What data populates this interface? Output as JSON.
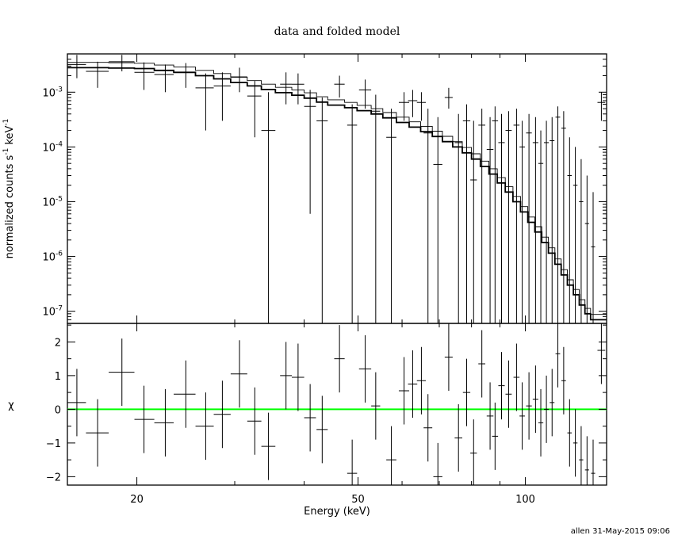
{
  "chart_data": {
    "type": "scatter",
    "title": "data and folded model",
    "footer": "allen 31-May-2015 09:06",
    "xlabel": "Energy (keV)",
    "xscale": "log",
    "xlim": [
      15,
      140
    ],
    "xticks": [
      {
        "v": 20,
        "label": "20"
      },
      {
        "v": 50,
        "label": "50"
      },
      {
        "v": 100,
        "label": "100"
      }
    ],
    "colors": {
      "axes": "#000000",
      "data": "#000000",
      "model": "#000000",
      "zero_line": "#00ff00"
    },
    "top_panel": {
      "ylabel": [
        "normalized counts s",
        "-1",
        " keV",
        "-1"
      ],
      "yscale": "log",
      "ylim": [
        6e-08,
        0.005
      ],
      "yticks": [
        {
          "v": 0.001,
          "base": "10",
          "exp": "-3"
        },
        {
          "v": 0.0001,
          "base": "10",
          "exp": "-4"
        },
        {
          "v": 1e-05,
          "base": "10",
          "exp": "-5"
        },
        {
          "v": 1e-06,
          "base": "10",
          "exp": "-6"
        },
        {
          "v": 1e-07,
          "base": "10",
          "exp": "-7"
        }
      ],
      "data": [
        {
          "x": 15.6,
          "xlo": 15.0,
          "xhi": 16.2,
          "y": 0.0032,
          "ylo": 0.0018,
          "yhi": 0.0048
        },
        {
          "x": 17.0,
          "xlo": 16.2,
          "xhi": 17.8,
          "y": 0.0024,
          "ylo": 0.0012,
          "yhi": 0.0036
        },
        {
          "x": 18.8,
          "xlo": 17.8,
          "xhi": 19.8,
          "y": 0.0036,
          "ylo": 0.0024,
          "yhi": 0.0048
        },
        {
          "x": 20.6,
          "xlo": 19.8,
          "xhi": 21.5,
          "y": 0.0023,
          "ylo": 0.0011,
          "yhi": 0.0035
        },
        {
          "x": 22.5,
          "xlo": 21.5,
          "xhi": 23.3,
          "y": 0.0021,
          "ylo": 0.001,
          "yhi": 0.0032
        },
        {
          "x": 24.5,
          "xlo": 23.3,
          "xhi": 25.5,
          "y": 0.0023,
          "ylo": 0.0012,
          "yhi": 0.0034
        },
        {
          "x": 26.6,
          "xlo": 25.5,
          "xhi": 27.5,
          "y": 0.0012,
          "ylo": 0.0002,
          "yhi": 0.0022
        },
        {
          "x": 28.5,
          "xlo": 27.5,
          "xhi": 29.5,
          "y": 0.0013,
          "ylo": 0.0003,
          "yhi": 0.0023
        },
        {
          "x": 30.6,
          "xlo": 29.5,
          "xhi": 31.6,
          "y": 0.0019,
          "ylo": 0.001,
          "yhi": 0.0028
        },
        {
          "x": 32.6,
          "xlo": 31.6,
          "xhi": 33.5,
          "y": 0.00085,
          "ylo": 0.00015,
          "yhi": 0.0016
        },
        {
          "x": 34.5,
          "xlo": 33.5,
          "xhi": 35.5,
          "y": 0.0002,
          "ylo": 6e-08,
          "yhi": 0.001
        },
        {
          "x": 37.1,
          "xlo": 36.2,
          "xhi": 38.0,
          "y": 0.0014,
          "ylo": 0.0006,
          "yhi": 0.0023
        },
        {
          "x": 39.0,
          "xlo": 38.0,
          "xhi": 40.0,
          "y": 0.0014,
          "ylo": 0.0006,
          "yhi": 0.0022
        },
        {
          "x": 41.0,
          "xlo": 40.0,
          "xhi": 42.0,
          "y": 0.00055,
          "ylo": 6e-06,
          "yhi": 0.0011
        },
        {
          "x": 43.1,
          "xlo": 42.1,
          "xhi": 44.1,
          "y": 0.0003,
          "ylo": 6e-08,
          "yhi": 0.0008
        },
        {
          "x": 46.3,
          "xlo": 45.3,
          "xhi": 47.3,
          "y": 0.0014,
          "ylo": 0.0008,
          "yhi": 0.002
        },
        {
          "x": 48.8,
          "xlo": 47.8,
          "xhi": 49.8,
          "y": 0.00025,
          "ylo": 6e-08,
          "yhi": 0.0006
        },
        {
          "x": 51.5,
          "xlo": 50.2,
          "xhi": 52.8,
          "y": 0.0011,
          "ylo": 0.0005,
          "yhi": 0.0017
        },
        {
          "x": 53.8,
          "xlo": 52.8,
          "xhi": 54.8,
          "y": 0.00045,
          "ylo": 6e-08,
          "yhi": 0.0009
        },
        {
          "x": 57.4,
          "xlo": 56.2,
          "xhi": 58.6,
          "y": 0.00015,
          "ylo": 6e-08,
          "yhi": 0.0005
        },
        {
          "x": 60.5,
          "xlo": 59.2,
          "xhi": 61.8,
          "y": 0.00065,
          "ylo": 0.0003,
          "yhi": 0.001
        },
        {
          "x": 62.7,
          "xlo": 61.5,
          "xhi": 63.9,
          "y": 0.0007,
          "ylo": 0.00035,
          "yhi": 0.0011
        },
        {
          "x": 65.0,
          "xlo": 63.8,
          "xhi": 66.2,
          "y": 0.00065,
          "ylo": 0.0003,
          "yhi": 0.001
        },
        {
          "x": 66.8,
          "xlo": 65.6,
          "xhi": 68.0,
          "y": 0.00018,
          "ylo": 6e-08,
          "yhi": 0.0005
        },
        {
          "x": 69.6,
          "xlo": 68.3,
          "xhi": 70.9,
          "y": 4.8e-05,
          "ylo": 6e-08,
          "yhi": 0.00035
        },
        {
          "x": 72.8,
          "xlo": 71.6,
          "xhi": 74.0,
          "y": 0.0008,
          "ylo": 0.0005,
          "yhi": 0.0012
        },
        {
          "x": 75.8,
          "xlo": 74.6,
          "xhi": 77.0,
          "y": 0.00012,
          "ylo": 6e-08,
          "yhi": 0.0004
        },
        {
          "x": 78.4,
          "xlo": 77.2,
          "xhi": 79.6,
          "y": 0.0003,
          "ylo": 6e-08,
          "yhi": 0.0006
        },
        {
          "x": 80.7,
          "xlo": 79.6,
          "xhi": 81.8,
          "y": 2.5e-05,
          "ylo": 6e-08,
          "yhi": 0.0003
        },
        {
          "x": 83.5,
          "xlo": 82.3,
          "xhi": 84.7,
          "y": 0.00025,
          "ylo": 6e-08,
          "yhi": 0.0005
        },
        {
          "x": 86.4,
          "xlo": 85.2,
          "xhi": 87.6,
          "y": 9e-05,
          "ylo": 6e-08,
          "yhi": 0.00035
        },
        {
          "x": 88.2,
          "xlo": 87.1,
          "xhi": 89.3,
          "y": 0.0003,
          "ylo": 6e-08,
          "yhi": 0.00055
        },
        {
          "x": 90.6,
          "xlo": 89.4,
          "xhi": 91.8,
          "y": 0.00012,
          "ylo": 6e-08,
          "yhi": 0.0004
        },
        {
          "x": 93.3,
          "xlo": 92.1,
          "xhi": 94.5,
          "y": 0.0002,
          "ylo": 6e-08,
          "yhi": 0.00045
        },
        {
          "x": 96.4,
          "xlo": 95.2,
          "xhi": 97.6,
          "y": 0.00025,
          "ylo": 6e-08,
          "yhi": 0.0005
        },
        {
          "x": 98.7,
          "xlo": 97.6,
          "xhi": 99.8,
          "y": 0.0001,
          "ylo": 6e-08,
          "yhi": 0.0003
        },
        {
          "x": 101.5,
          "xlo": 100.3,
          "xhi": 102.7,
          "y": 0.00018,
          "ylo": 6e-08,
          "yhi": 0.0004
        },
        {
          "x": 104.3,
          "xlo": 103.1,
          "xhi": 105.5,
          "y": 0.00012,
          "ylo": 6e-08,
          "yhi": 0.00035
        },
        {
          "x": 106.6,
          "xlo": 105.5,
          "xhi": 107.7,
          "y": 5e-05,
          "ylo": 6e-08,
          "yhi": 0.0002
        },
        {
          "x": 109.1,
          "xlo": 108.0,
          "xhi": 110.2,
          "y": 0.00012,
          "ylo": 6e-08,
          "yhi": 0.0003
        },
        {
          "x": 111.7,
          "xlo": 110.6,
          "xhi": 112.8,
          "y": 0.00013,
          "ylo": 6e-08,
          "yhi": 0.00035
        },
        {
          "x": 114.4,
          "xlo": 113.3,
          "xhi": 115.5,
          "y": 0.00035,
          "ylo": 6e-08,
          "yhi": 0.00055
        },
        {
          "x": 117.2,
          "xlo": 116.1,
          "xhi": 118.3,
          "y": 0.00022,
          "ylo": 6e-08,
          "yhi": 0.00045
        },
        {
          "x": 120.1,
          "xlo": 119.0,
          "xhi": 121.2,
          "y": 3e-05,
          "ylo": 6e-08,
          "yhi": 0.00015
        },
        {
          "x": 123.0,
          "xlo": 121.9,
          "xhi": 124.1,
          "y": 2e-05,
          "ylo": 6e-08,
          "yhi": 0.0001
        },
        {
          "x": 126.0,
          "xlo": 124.9,
          "xhi": 127.1,
          "y": 1e-05,
          "ylo": 6e-08,
          "yhi": 6e-05
        },
        {
          "x": 129.1,
          "xlo": 128.0,
          "xhi": 130.2,
          "y": 4e-06,
          "ylo": 6e-08,
          "yhi": 3e-05
        },
        {
          "x": 132.4,
          "xlo": 131.3,
          "xhi": 133.5,
          "y": 1.5e-06,
          "ylo": 6e-08,
          "yhi": 1.5e-05
        },
        {
          "x": 137.0,
          "xlo": 134.8,
          "xhi": 139.2,
          "y": 0.00065,
          "ylo": 0.0003,
          "yhi": 0.001
        }
      ],
      "model": [
        [
          15.0,
          0.0028
        ],
        [
          16.2,
          0.0028
        ],
        [
          17.8,
          0.00275
        ],
        [
          19.8,
          0.0027
        ],
        [
          21.5,
          0.0025
        ],
        [
          23.3,
          0.0023
        ],
        [
          25.5,
          0.002
        ],
        [
          27.5,
          0.00175
        ],
        [
          29.5,
          0.0015
        ],
        [
          31.6,
          0.0013
        ],
        [
          33.5,
          0.00112
        ],
        [
          35.5,
          0.00098
        ],
        [
          38.0,
          0.00088
        ],
        [
          40.0,
          0.00078
        ],
        [
          42.1,
          0.00066
        ],
        [
          44.1,
          0.00058
        ],
        [
          47.3,
          0.00052
        ],
        [
          49.8,
          0.00046
        ],
        [
          52.8,
          0.0004
        ],
        [
          55.4,
          0.00034
        ],
        [
          58.6,
          0.00028
        ],
        [
          61.8,
          0.00023
        ],
        [
          64.8,
          0.00019
        ],
        [
          68.0,
          0.000155
        ],
        [
          70.9,
          0.000125
        ],
        [
          74.0,
          0.0001
        ],
        [
          77.0,
          7.8e-05
        ],
        [
          80.0,
          6e-05
        ],
        [
          83.0,
          4.4e-05
        ],
        [
          86.0,
          3.2e-05
        ],
        [
          89.0,
          2.2e-05
        ],
        [
          92.0,
          1.5e-05
        ],
        [
          95.0,
          1e-05
        ],
        [
          98.0,
          6.5e-06
        ],
        [
          101.0,
          4.2e-06
        ],
        [
          104.0,
          2.8e-06
        ],
        [
          107.0,
          1.8e-06
        ],
        [
          110.0,
          1.15e-06
        ],
        [
          113.0,
          7.2e-07
        ],
        [
          116.0,
          4.6e-07
        ],
        [
          119.0,
          3e-07
        ],
        [
          122.0,
          2e-07
        ],
        [
          125.0,
          1.3e-07
        ],
        [
          128.0,
          9e-08
        ],
        [
          131.0,
          7e-08
        ],
        [
          140.0,
          6e-08
        ]
      ]
    },
    "bottom_panel": {
      "ylabel": "χ",
      "ylim": [
        -2.25,
        2.55
      ],
      "yticks": [
        {
          "v": -2,
          "label": "−2"
        },
        {
          "v": -1,
          "label": "−1"
        },
        {
          "v": 0,
          "label": "0"
        },
        {
          "v": 1,
          "label": "1"
        },
        {
          "v": 2,
          "label": "2"
        }
      ],
      "zero_line": 0,
      "data": [
        {
          "x": 15.6,
          "xlo": 15.0,
          "xhi": 16.2,
          "y": 0.2,
          "ylo": -0.8,
          "yhi": 1.2
        },
        {
          "x": 17.0,
          "xlo": 16.2,
          "xhi": 17.8,
          "y": -0.7,
          "ylo": -1.7,
          "yhi": 0.3
        },
        {
          "x": 18.8,
          "xlo": 17.8,
          "xhi": 19.8,
          "y": 1.1,
          "ylo": 0.1,
          "yhi": 2.1
        },
        {
          "x": 20.6,
          "xlo": 19.8,
          "xhi": 21.5,
          "y": -0.3,
          "ylo": -1.3,
          "yhi": 0.7
        },
        {
          "x": 22.5,
          "xlo": 21.5,
          "xhi": 23.3,
          "y": -0.4,
          "ylo": -1.4,
          "yhi": 0.6
        },
        {
          "x": 24.5,
          "xlo": 23.3,
          "xhi": 25.5,
          "y": 0.45,
          "ylo": -0.55,
          "yhi": 1.45
        },
        {
          "x": 26.6,
          "xlo": 25.5,
          "xhi": 27.5,
          "y": -0.5,
          "ylo": -1.5,
          "yhi": 0.5
        },
        {
          "x": 28.5,
          "xlo": 27.5,
          "xhi": 29.5,
          "y": -0.15,
          "ylo": -1.15,
          "yhi": 0.85
        },
        {
          "x": 30.6,
          "xlo": 29.5,
          "xhi": 31.6,
          "y": 1.05,
          "ylo": 0.05,
          "yhi": 2.05
        },
        {
          "x": 32.6,
          "xlo": 31.6,
          "xhi": 33.5,
          "y": -0.35,
          "ylo": -1.35,
          "yhi": 0.65
        },
        {
          "x": 34.5,
          "xlo": 33.5,
          "xhi": 35.5,
          "y": -1.1,
          "ylo": -2.1,
          "yhi": -0.1
        },
        {
          "x": 37.1,
          "xlo": 36.2,
          "xhi": 38.0,
          "y": 1.0,
          "ylo": 0.0,
          "yhi": 2.0
        },
        {
          "x": 39.0,
          "xlo": 38.0,
          "xhi": 40.0,
          "y": 0.95,
          "ylo": -0.05,
          "yhi": 1.95
        },
        {
          "x": 41.0,
          "xlo": 40.0,
          "xhi": 42.0,
          "y": -0.25,
          "ylo": -1.25,
          "yhi": 0.75
        },
        {
          "x": 43.1,
          "xlo": 42.1,
          "xhi": 44.1,
          "y": -0.6,
          "ylo": -1.6,
          "yhi": 0.4
        },
        {
          "x": 46.3,
          "xlo": 45.3,
          "xhi": 47.3,
          "y": 1.5,
          "ylo": 0.5,
          "yhi": 2.5
        },
        {
          "x": 48.8,
          "xlo": 47.8,
          "xhi": 49.8,
          "y": -1.9,
          "ylo": -2.25,
          "yhi": -0.9
        },
        {
          "x": 51.5,
          "xlo": 50.2,
          "xhi": 52.8,
          "y": 1.2,
          "ylo": 0.2,
          "yhi": 2.2
        },
        {
          "x": 53.8,
          "xlo": 52.8,
          "xhi": 54.8,
          "y": 0.1,
          "ylo": -0.9,
          "yhi": 1.1
        },
        {
          "x": 57.4,
          "xlo": 56.2,
          "xhi": 58.6,
          "y": -1.5,
          "ylo": -2.25,
          "yhi": -0.5
        },
        {
          "x": 60.5,
          "xlo": 59.2,
          "xhi": 61.8,
          "y": 0.55,
          "ylo": -0.45,
          "yhi": 1.55
        },
        {
          "x": 62.7,
          "xlo": 61.5,
          "xhi": 63.9,
          "y": 0.75,
          "ylo": -0.25,
          "yhi": 1.75
        },
        {
          "x": 65.0,
          "xlo": 63.8,
          "xhi": 66.2,
          "y": 0.85,
          "ylo": -0.15,
          "yhi": 1.85
        },
        {
          "x": 66.8,
          "xlo": 65.6,
          "xhi": 68.0,
          "y": -0.55,
          "ylo": -1.55,
          "yhi": 0.45
        },
        {
          "x": 69.6,
          "xlo": 68.3,
          "xhi": 70.9,
          "y": -2.0,
          "ylo": -2.25,
          "yhi": -1.0
        },
        {
          "x": 72.8,
          "xlo": 71.6,
          "xhi": 74.0,
          "y": 1.55,
          "ylo": 0.55,
          "yhi": 2.55
        },
        {
          "x": 75.8,
          "xlo": 74.6,
          "xhi": 77.0,
          "y": -0.85,
          "ylo": -1.85,
          "yhi": 0.15
        },
        {
          "x": 78.4,
          "xlo": 77.2,
          "xhi": 79.6,
          "y": 0.5,
          "ylo": -0.5,
          "yhi": 1.5
        },
        {
          "x": 80.7,
          "xlo": 79.6,
          "xhi": 81.8,
          "y": -1.3,
          "ylo": -2.25,
          "yhi": -0.3
        },
        {
          "x": 83.5,
          "xlo": 82.3,
          "xhi": 84.7,
          "y": 1.35,
          "ylo": 0.35,
          "yhi": 2.35
        },
        {
          "x": 86.4,
          "xlo": 85.2,
          "xhi": 87.6,
          "y": -0.2,
          "ylo": -1.2,
          "yhi": 0.8
        },
        {
          "x": 88.2,
          "xlo": 87.1,
          "xhi": 89.3,
          "y": -0.8,
          "ylo": -1.8,
          "yhi": 0.2
        },
        {
          "x": 90.6,
          "xlo": 89.4,
          "xhi": 91.8,
          "y": 0.7,
          "ylo": -0.3,
          "yhi": 1.7
        },
        {
          "x": 93.3,
          "xlo": 92.1,
          "xhi": 94.5,
          "y": 0.45,
          "ylo": -0.55,
          "yhi": 1.45
        },
        {
          "x": 96.4,
          "xlo": 95.2,
          "xhi": 97.6,
          "y": 0.95,
          "ylo": -0.05,
          "yhi": 1.95
        },
        {
          "x": 98.7,
          "xlo": 97.6,
          "xhi": 99.8,
          "y": -0.2,
          "ylo": -1.2,
          "yhi": 0.8
        },
        {
          "x": 101.5,
          "xlo": 100.3,
          "xhi": 102.7,
          "y": 0.1,
          "ylo": -0.9,
          "yhi": 1.1
        },
        {
          "x": 104.3,
          "xlo": 103.1,
          "xhi": 105.5,
          "y": 0.3,
          "ylo": -0.7,
          "yhi": 1.3
        },
        {
          "x": 106.6,
          "xlo": 105.5,
          "xhi": 107.7,
          "y": -0.4,
          "ylo": -1.4,
          "yhi": 0.6
        },
        {
          "x": 109.1,
          "xlo": 108.0,
          "xhi": 110.2,
          "y": 0.0,
          "ylo": -1.0,
          "yhi": 1.0
        },
        {
          "x": 111.7,
          "xlo": 110.6,
          "xhi": 112.8,
          "y": 0.2,
          "ylo": -0.8,
          "yhi": 1.2
        },
        {
          "x": 114.4,
          "xlo": 113.3,
          "xhi": 115.5,
          "y": 1.65,
          "ylo": 0.65,
          "yhi": 2.55
        },
        {
          "x": 117.2,
          "xlo": 116.1,
          "xhi": 118.3,
          "y": 0.85,
          "ylo": -0.15,
          "yhi": 1.85
        },
        {
          "x": 120.1,
          "xlo": 119.0,
          "xhi": 121.2,
          "y": -0.7,
          "ylo": -1.7,
          "yhi": 0.3
        },
        {
          "x": 123.0,
          "xlo": 121.9,
          "xhi": 124.1,
          "y": -1.0,
          "ylo": -2.0,
          "yhi": 0.0
        },
        {
          "x": 126.0,
          "xlo": 124.9,
          "xhi": 127.1,
          "y": -1.5,
          "ylo": -2.25,
          "yhi": -0.5
        },
        {
          "x": 129.1,
          "xlo": 128.0,
          "xhi": 130.2,
          "y": -1.8,
          "ylo": -2.25,
          "yhi": -0.8
        },
        {
          "x": 132.4,
          "xlo": 131.3,
          "xhi": 133.5,
          "y": -1.9,
          "ylo": -2.25,
          "yhi": -0.9
        },
        {
          "x": 137.0,
          "xlo": 134.8,
          "xhi": 139.2,
          "y": 1.75,
          "ylo": 0.75,
          "yhi": 2.55
        }
      ]
    }
  }
}
